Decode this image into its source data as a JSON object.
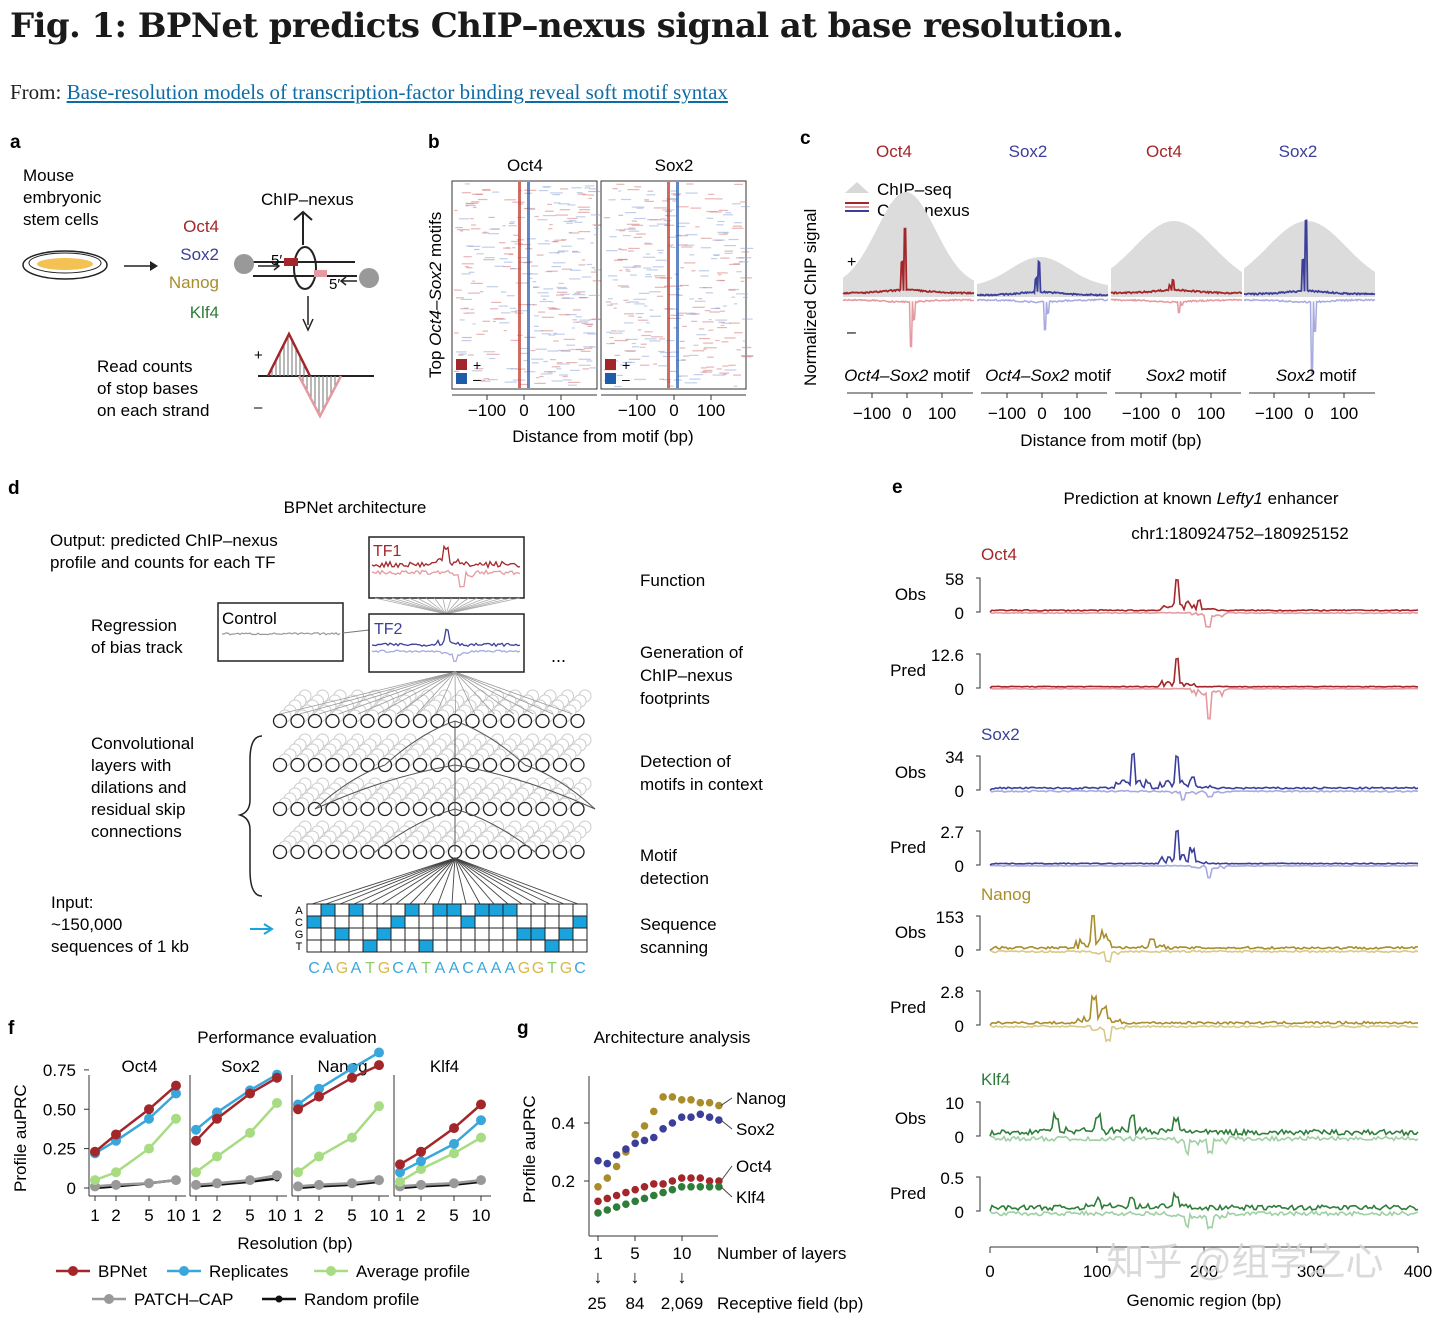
{
  "figure": {
    "title": "Fig. 1: BPNet predicts ChIP–nexus signal at base resolution.",
    "from_prefix": "From:",
    "from_link": "Base-resolution models of transcription-factor binding reveal soft motif syntax"
  },
  "colors": {
    "oct4": "#a3262a",
    "oct4_light": "#e39aa0",
    "sox2": "#3b3f9a",
    "sox2_light": "#a7aade",
    "nanog": "#a88d2a",
    "nanog_light": "#d8c98a",
    "klf4": "#2f7d3a",
    "klf4_light": "#9fd0a4",
    "chipseq": "#dedede",
    "bpnet": "#a3262a",
    "replicates": "#3aa7dc",
    "average": "#a7dc83",
    "patchcap": "#999999",
    "random": "#111111",
    "dna_fill": "#1ba3dd"
  },
  "panel_a": {
    "letter": "a",
    "cells_label": [
      "Mouse",
      "embryonic",
      "stem cells"
    ],
    "assay": "ChIP–nexus",
    "tfs": [
      {
        "name": "Oct4",
        "color": "#a3262a"
      },
      {
        "name": "Sox2",
        "color": "#3b3f9a"
      },
      {
        "name": "Nanog",
        "color": "#a88d2a"
      },
      {
        "name": "Klf4",
        "color": "#2f7d3a"
      }
    ],
    "prime_left": "5′",
    "prime_right": "5′",
    "read_counts": [
      "Read counts",
      "of stop bases",
      "on each strand"
    ],
    "plus": "+",
    "minus": "–"
  },
  "panel_b": {
    "letter": "b",
    "heatmaps": [
      "Oct4",
      "Sox2"
    ],
    "ylabel_prefix": "Top ",
    "ylabel_italic": "Oct4–Sox2",
    "ylabel_suffix": " motifs",
    "legend_plus": "+",
    "legend_minus": "–",
    "ticks": [
      "−100",
      "0",
      "100"
    ],
    "xlabel": "Distance from motif (bp)"
  },
  "panel_c": {
    "letter": "c",
    "column_titles": [
      {
        "name": "Oct4",
        "color": "#a3262a"
      },
      {
        "name": "Sox2",
        "color": "#3b3f9a"
      },
      {
        "name": "Oct4",
        "color": "#a3262a"
      },
      {
        "name": "Sox2",
        "color": "#3b3f9a"
      }
    ],
    "legend": [
      "ChIP–seq",
      "ChIP–nexus"
    ],
    "ylabel": "Normalized ChIP signal",
    "plus": "+",
    "minus": "–",
    "motifs": [
      {
        "italic": "Oct4–Sox2",
        "rest": " motif"
      },
      {
        "italic": "Oct4–Sox2",
        "rest": " motif"
      },
      {
        "italic": "Sox2",
        "rest": " motif"
      },
      {
        "italic": "Sox2",
        "rest": " motif"
      }
    ],
    "ticks": [
      "−100",
      "0",
      "100"
    ],
    "xlabel": "Distance from motif (bp)"
  },
  "panel_d": {
    "letter": "d",
    "title": "BPNet architecture",
    "output": [
      "Output: predicted ChIP–nexus",
      "profile and counts for each TF"
    ],
    "regression": [
      "Regression",
      "of bias track"
    ],
    "control": "Control",
    "tf1": "TF1",
    "tf2": "TF2",
    "ellipsis": "...",
    "conv": [
      "Convolutional",
      "layers with",
      "dilations and",
      "residual skip",
      "connections"
    ],
    "input": [
      "Input:",
      "~150,000",
      "sequences of 1 kb"
    ],
    "bases": [
      "A",
      "C",
      "G",
      "T"
    ],
    "sequence": "CAGATGCATAACAAAGGTGC",
    "right_labels": [
      [
        "Function"
      ],
      [
        "Generation of",
        "ChIP–nexus",
        "footprints"
      ],
      [
        "Detection of",
        "motifs in context"
      ],
      [
        "Motif",
        "detection"
      ],
      [
        "Sequence",
        "scanning"
      ]
    ]
  },
  "panel_e": {
    "letter": "e",
    "title_prefix": "Prediction at known ",
    "title_italic": "Lefty1",
    "title_suffix": " enhancer",
    "locus": "chr1:180924752–180925152",
    "tracks": [
      {
        "tf": "Oct4",
        "color": "#a3262a",
        "obs_max": "58",
        "pred_max": "12.6"
      },
      {
        "tf": "Sox2",
        "color": "#3b3f9a",
        "obs_max": "34",
        "pred_max": "2.7"
      },
      {
        "tf": "Nanog",
        "color": "#a88d2a",
        "obs_max": "153",
        "pred_max": "2.8"
      },
      {
        "tf": "Klf4",
        "color": "#2f7d3a",
        "obs_max": "10",
        "pred_max": "0.5"
      }
    ],
    "obs_label": "Obs",
    "pred_label": "Pred",
    "zero": "0",
    "x_ticks": [
      "0",
      "100",
      "200",
      "300",
      "400"
    ],
    "xlabel": "Genomic region (bp)",
    "watermark": "知乎 @组学之心"
  },
  "panel_f": {
    "letter": "f",
    "title": "Performance evaluation",
    "ylabel": "Profile auPRC",
    "xlabel": "Resolution (bp)",
    "legend": [
      "BPNet",
      "Replicates",
      "Average profile",
      "PATCH–CAP",
      "Random profile"
    ]
  },
  "panel_g": {
    "letter": "g",
    "title": "Architecture analysis",
    "ylabel": "Profile auPRC",
    "layers_label": "Number of layers",
    "rf_label": "Receptive field (bp)",
    "arrow": "↓",
    "rf_values": [
      "25",
      "84",
      "2,069"
    ]
  },
  "chart_data": [
    {
      "type": "line",
      "title": "Performance evaluation",
      "facets": [
        "Oct4",
        "Sox2",
        "Nanog",
        "Klf4"
      ],
      "x": [
        1,
        2,
        5,
        10
      ],
      "x_tick_labels": [
        "1",
        "2",
        "5",
        "10"
      ],
      "xlabel": "Resolution (bp)",
      "ylabel": "Profile auPRC",
      "ylim": [
        0,
        0.8
      ],
      "y_ticks": [
        "0",
        "0.25",
        "0.50",
        "0.75"
      ],
      "series": [
        {
          "name": "BPNet",
          "color": "#a3262a",
          "values": [
            [
              0.23,
              0.34,
              0.5,
              0.65
            ],
            [
              0.3,
              0.44,
              0.6,
              0.7
            ],
            [
              0.5,
              0.58,
              0.7,
              0.78
            ],
            [
              0.15,
              0.23,
              0.38,
              0.53
            ]
          ]
        },
        {
          "name": "Replicates",
          "color": "#3aa7dc",
          "values": [
            [
              0.22,
              0.3,
              0.44,
              0.6
            ],
            [
              0.37,
              0.48,
              0.62,
              0.72
            ],
            [
              0.53,
              0.63,
              0.76,
              0.86
            ],
            [
              0.1,
              0.17,
              0.28,
              0.43
            ]
          ]
        },
        {
          "name": "Average profile",
          "color": "#a7dc83",
          "values": [
            [
              0.05,
              0.1,
              0.25,
              0.44
            ],
            [
              0.1,
              0.2,
              0.35,
              0.54
            ],
            [
              0.1,
              0.2,
              0.32,
              0.52
            ],
            [
              0.04,
              0.12,
              0.22,
              0.32
            ]
          ]
        },
        {
          "name": "PATCH–CAP",
          "color": "#999999",
          "values": [
            [
              0.01,
              0.02,
              0.03,
              0.05
            ],
            [
              0.02,
              0.03,
              0.05,
              0.08
            ],
            [
              0.01,
              0.02,
              0.03,
              0.05
            ],
            [
              0.01,
              0.02,
              0.03,
              0.05
            ]
          ]
        },
        {
          "name": "Random profile",
          "color": "#111111",
          "values": [
            [
              0.0,
              0.01,
              0.03,
              0.05
            ],
            [
              0.01,
              0.02,
              0.04,
              0.06
            ],
            [
              0.0,
              0.01,
              0.02,
              0.04
            ],
            [
              0.0,
              0.01,
              0.02,
              0.04
            ]
          ]
        }
      ]
    },
    {
      "type": "scatter",
      "title": "Architecture analysis",
      "x": [
        1,
        2,
        3,
        4,
        5,
        6,
        7,
        8,
        9,
        10,
        11,
        12,
        13,
        14
      ],
      "x_tick_labels": [
        "1",
        "5",
        "10"
      ],
      "x_tick_values": [
        1,
        5,
        10
      ],
      "xlabel": "Number of layers",
      "ylabel": "Profile auPRC",
      "ylim": [
        0.05,
        0.55
      ],
      "y_ticks": [
        "0.2",
        "0.4"
      ],
      "series": [
        {
          "name": "Nanog",
          "color": "#a88d2a",
          "values": [
            0.18,
            0.21,
            0.25,
            0.3,
            0.36,
            0.39,
            0.44,
            0.49,
            0.49,
            0.48,
            0.48,
            0.47,
            0.47,
            0.46
          ]
        },
        {
          "name": "Sox2",
          "color": "#3b3f9a",
          "values": [
            0.27,
            0.26,
            0.29,
            0.31,
            0.33,
            0.34,
            0.35,
            0.38,
            0.4,
            0.42,
            0.42,
            0.43,
            0.42,
            0.41
          ]
        },
        {
          "name": "Oct4",
          "color": "#a3262a",
          "values": [
            0.13,
            0.14,
            0.15,
            0.16,
            0.17,
            0.18,
            0.19,
            0.19,
            0.2,
            0.21,
            0.21,
            0.21,
            0.2,
            0.2
          ]
        },
        {
          "name": "Klf4",
          "color": "#2f7d3a",
          "values": [
            0.09,
            0.1,
            0.11,
            0.12,
            0.13,
            0.14,
            0.15,
            0.16,
            0.17,
            0.18,
            0.18,
            0.18,
            0.18,
            0.18
          ]
        }
      ]
    }
  ]
}
